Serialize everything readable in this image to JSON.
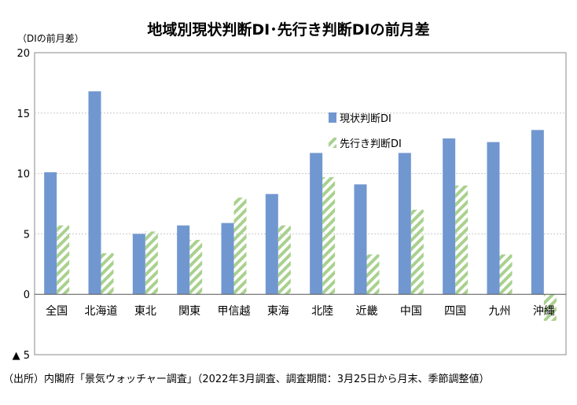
{
  "chart_data": {
    "type": "bar",
    "title": "地域別現状判断DI･先行き判断DIの前月差",
    "ylabel": "（DIの前月差）",
    "ylim": [
      -5,
      20
    ],
    "yticks": [
      20,
      15,
      10,
      5,
      0,
      -5
    ],
    "ytick_labels": [
      "20",
      "15",
      "10",
      "5",
      "0",
      "▲ 5"
    ],
    "categories": [
      "全国",
      "北海道",
      "東北",
      "関東",
      "甲信越",
      "東海",
      "北陸",
      "近畿",
      "中国",
      "四国",
      "九州",
      "沖縄"
    ],
    "series": [
      {
        "name": "現状判断DI",
        "color": "#7197d0",
        "pattern": "solid",
        "values": [
          10.1,
          16.8,
          5.0,
          5.7,
          5.9,
          8.3,
          11.7,
          9.1,
          11.7,
          12.9,
          12.6,
          13.6
        ]
      },
      {
        "name": "先行き判断DI",
        "color": "#a9d18e",
        "pattern": "diagonal-stripes",
        "values": [
          5.7,
          3.4,
          5.2,
          4.5,
          8.0,
          5.7,
          9.7,
          3.3,
          7.0,
          9.0,
          3.3,
          -2.2
        ]
      }
    ],
    "legend_position": "upper-right-inside",
    "grid": {
      "horizontal": true,
      "style": "dotted"
    }
  },
  "source_note": "（出所）内閣府「景気ウォッチャー調査」（2022年3月調査、調査期間：3月25日から月末、季節調整値）"
}
